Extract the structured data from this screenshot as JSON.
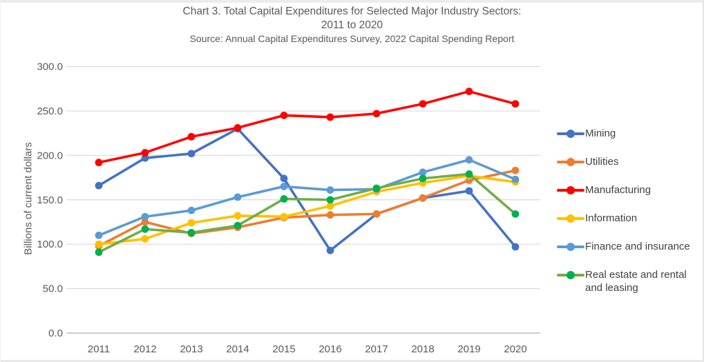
{
  "title": {
    "line1": "Chart 3. Total Capital Expenditures for Selected Major Industry Sectors:",
    "line2": "2011 to 2020",
    "source": "Source: Annual Capital Expenditures Survey, 2022 Capital Spending Report"
  },
  "y_axis": {
    "title": "Billions of current dollars",
    "tick_labels": [
      "0.0",
      "50.0",
      "100.0",
      "150.0",
      "200.0",
      "250.0",
      "300.0"
    ]
  },
  "x_axis": {
    "tick_labels": [
      "2011",
      "2012",
      "2013",
      "2014",
      "2015",
      "2016",
      "2017",
      "2018",
      "2019",
      "2020"
    ]
  },
  "colors": {
    "gridline": "#d9d9d9",
    "axis_line": "#b0b0b0",
    "tick_text": "#595959",
    "title_text": "#595959",
    "legend_text": "#404040"
  },
  "chart_data": {
    "type": "line",
    "title": "Chart 3. Total Capital Expenditures for Selected Major Industry Sectors: 2011 to 2020",
    "subtitle": "Source: Annual Capital Expenditures Survey, 2022 Capital Spending Report",
    "xlabel": "",
    "ylabel": "Billions of current dollars",
    "ylim": [
      0,
      300
    ],
    "ytick_step": 50,
    "grid": true,
    "legend_position": "right",
    "x": [
      2011,
      2012,
      2013,
      2014,
      2015,
      2016,
      2017,
      2018,
      2019,
      2020
    ],
    "series": [
      {
        "name": "Mining",
        "color": "#4472C4",
        "values": [
          166,
          197,
          202,
          230,
          174,
          93,
          134,
          152,
          160,
          97
        ]
      },
      {
        "name": "Utilities",
        "color": "#ED7D31",
        "values": [
          98,
          125,
          112,
          119,
          130,
          133,
          134,
          152,
          172,
          183
        ]
      },
      {
        "name": "Manufacturing",
        "color": "#FF0000",
        "values": [
          192,
          203,
          221,
          231,
          245,
          243,
          247,
          258,
          272,
          258
        ]
      },
      {
        "name": "Information",
        "color": "#FFC000",
        "values": [
          100,
          106,
          124,
          132,
          131,
          143,
          159,
          169,
          177,
          170
        ]
      },
      {
        "name": "Finance and insurance",
        "color": "#5B9BD5",
        "values": [
          110,
          131,
          138,
          153,
          165,
          161,
          162,
          181,
          195,
          173
        ]
      },
      {
        "name": "Real estate and rental and leasing",
        "color": "#70AD47",
        "marker_color": "#00B050",
        "values": [
          91,
          117,
          113,
          121,
          151,
          150,
          163,
          174,
          179,
          134
        ]
      }
    ]
  }
}
